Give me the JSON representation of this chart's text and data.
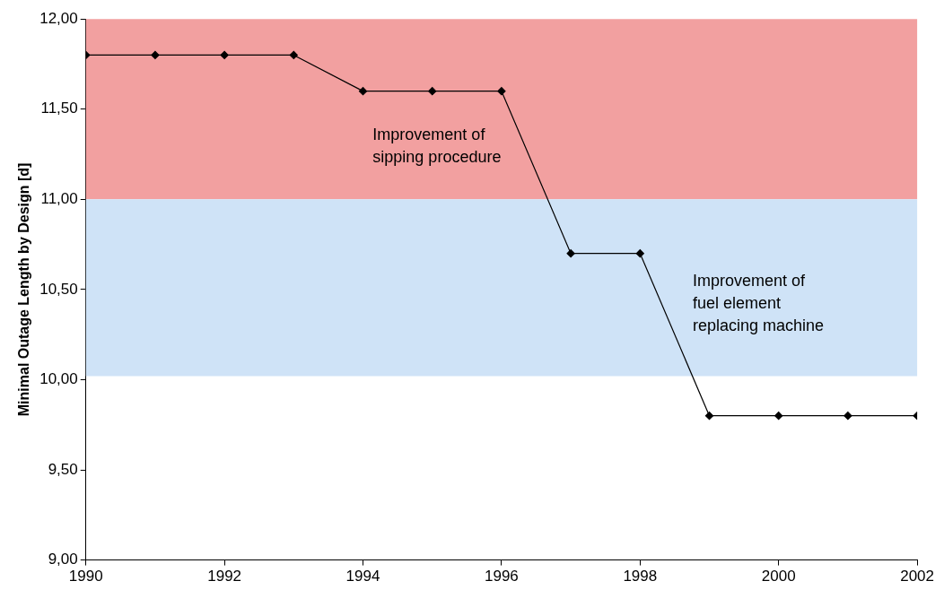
{
  "chart_data": {
    "type": "line",
    "ylabel": "Minimal Outage Length by Design [d]",
    "x": [
      1990,
      1991,
      1992,
      1993,
      1994,
      1995,
      1996,
      1997,
      1998,
      1999,
      2000,
      2001,
      2002
    ],
    "series": [
      {
        "color": "#000000",
        "values": [
          11.8,
          11.8,
          11.8,
          11.8,
          11.6,
          11.6,
          11.6,
          10.7,
          10.7,
          9.8,
          9.8,
          9.8,
          9.8
        ]
      }
    ],
    "marker": "diamond",
    "line_style": "solid",
    "grid": false,
    "legend": false,
    "xlim": [
      1990,
      2002
    ],
    "xticks": [
      1990,
      1992,
      1994,
      1996,
      1998,
      2000,
      2002
    ],
    "ylim": [
      9,
      12
    ],
    "yticks": [
      {
        "value": 9,
        "label": "9,00"
      },
      {
        "value": 9.5,
        "label": "9,50"
      },
      {
        "value": 10,
        "label": "10,00"
      },
      {
        "value": 10.5,
        "label": "10,50"
      },
      {
        "value": 11,
        "label": "11,00"
      },
      {
        "value": 11.5,
        "label": "11,50"
      },
      {
        "value": 12,
        "label": "12,00"
      }
    ],
    "bands": [
      {
        "axis": "y",
        "from": 11,
        "to": 12,
        "color": "#f2a0a0"
      },
      {
        "axis": "y",
        "from": 10.02,
        "to": 11,
        "color": "#cfe3f7"
      }
    ],
    "annotations": [
      "Improvement of sipping procedure",
      "Improvement of fuel element replacing machine"
    ]
  }
}
